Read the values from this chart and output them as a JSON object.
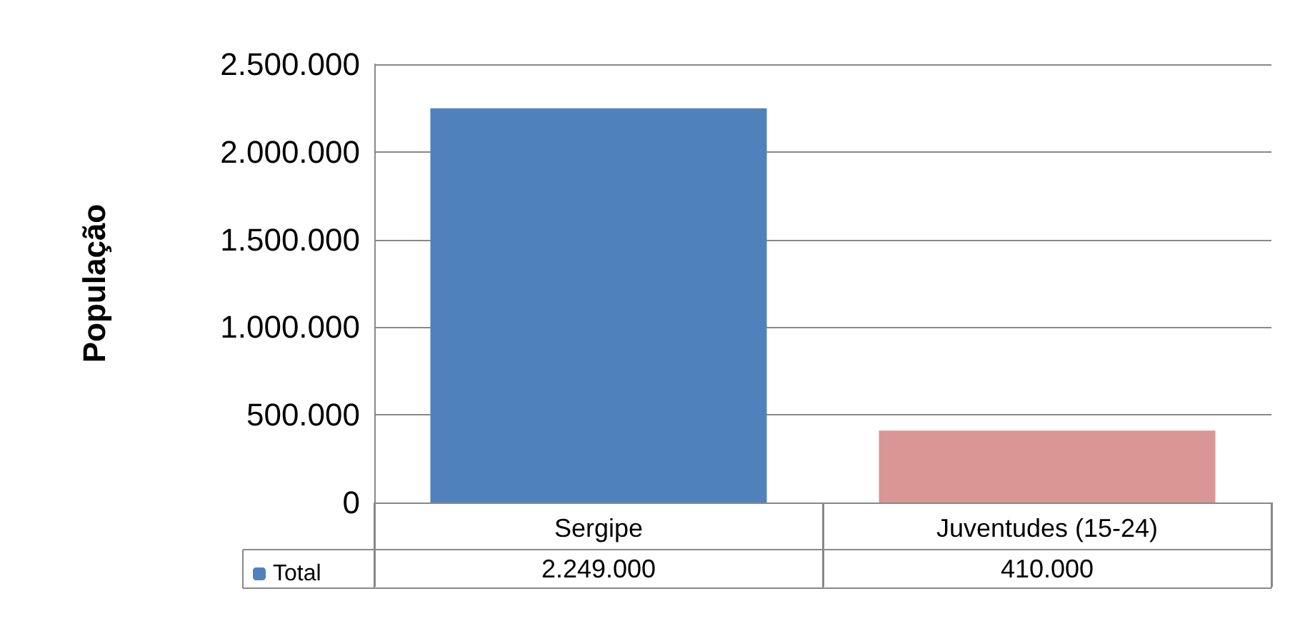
{
  "chart_data": {
    "type": "bar",
    "ylabel": "População",
    "categories": [
      "Sergipe",
      "Juventudes (15-24)"
    ],
    "series": [
      {
        "name": "Total",
        "color": "#4f81bd",
        "colors": [
          "#4f81bd",
          "#d99694"
        ],
        "values": [
          2249000,
          410000
        ],
        "value_labels": [
          "2.249.000",
          "410.000"
        ]
      }
    ],
    "ylim": [
      0,
      2500000
    ],
    "yticks": [
      {
        "value": 0,
        "label": "0"
      },
      {
        "value": 500000,
        "label": "500.000"
      },
      {
        "value": 1000000,
        "label": "1.000.000"
      },
      {
        "value": 1500000,
        "label": "1.500.000"
      },
      {
        "value": 2000000,
        "label": "2.000.000"
      },
      {
        "value": 2500000,
        "label": "2.500.000"
      }
    ],
    "grid": "y",
    "legend": "bottom"
  }
}
